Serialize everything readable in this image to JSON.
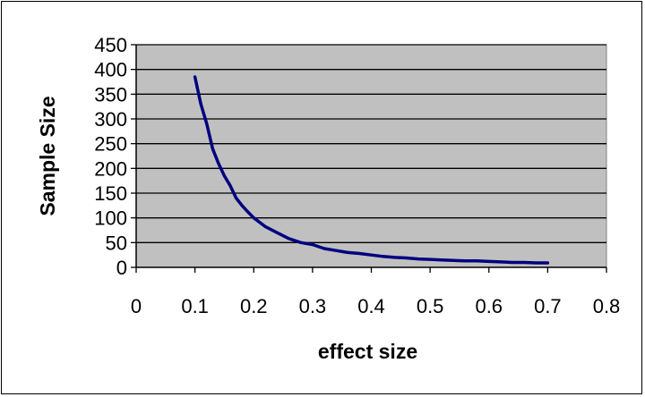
{
  "chart_data": {
    "type": "line",
    "title": "",
    "xlabel": "effect size",
    "ylabel": "Sample Size",
    "xlim": [
      0,
      0.8
    ],
    "ylim": [
      0,
      450
    ],
    "x_ticks": [
      "0",
      "0.1",
      "0.2",
      "0.3",
      "0.4",
      "0.5",
      "0.6",
      "0.7",
      "0.8"
    ],
    "y_ticks": [
      "0",
      "50",
      "100",
      "150",
      "200",
      "250",
      "300",
      "350",
      "400",
      "450"
    ],
    "grid": true,
    "legend": "none",
    "colors": {
      "line": "#000080",
      "plot_background": "#c0c0c0",
      "gridline": "#000000"
    },
    "series": [
      {
        "x": [
          0.1,
          0.11,
          0.12,
          0.13,
          0.14,
          0.15,
          0.16,
          0.17,
          0.18,
          0.19,
          0.2,
          0.22,
          0.24,
          0.26,
          0.28,
          0.3,
          0.32,
          0.34,
          0.36,
          0.38,
          0.4,
          0.42,
          0.44,
          0.46,
          0.48,
          0.5,
          0.52,
          0.54,
          0.56,
          0.58,
          0.6,
          0.62,
          0.64,
          0.66,
          0.68,
          0.7
        ],
        "y": [
          385,
          330,
          290,
          240,
          210,
          185,
          165,
          140,
          125,
          112,
          100,
          82,
          70,
          58,
          50,
          46,
          38,
          34,
          30,
          28,
          25,
          22,
          20,
          19,
          17,
          16,
          15,
          14,
          13,
          13,
          12,
          11,
          10,
          10,
          9,
          9
        ]
      }
    ]
  }
}
